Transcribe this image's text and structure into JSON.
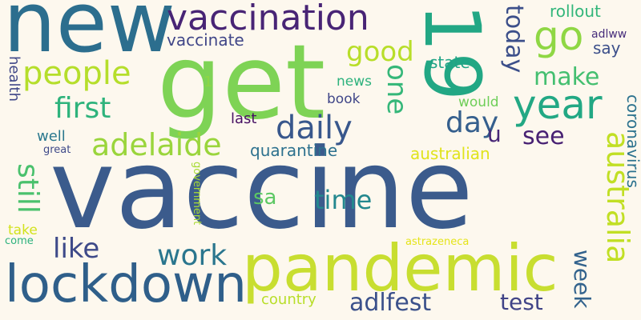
{
  "words": [
    {
      "text": "vaccine",
      "color": "#3b5b8c"
    },
    {
      "text": "get",
      "color": "#7ed355"
    },
    {
      "text": "new",
      "color": "#2c6e8e"
    },
    {
      "text": "pandemic",
      "color": "#c8de30"
    },
    {
      "text": "lockdown",
      "color": "#2f5f8a"
    },
    {
      "text": "19",
      "color": "#22a784"
    },
    {
      "text": "vaccination",
      "color": "#482475"
    },
    {
      "text": "year",
      "color": "#22a884"
    },
    {
      "text": "go",
      "color": "#8fd744"
    },
    {
      "text": "daily",
      "color": "#38578c"
    },
    {
      "text": "people",
      "color": "#b5de2b"
    },
    {
      "text": "adelaide",
      "color": "#9ad53c"
    },
    {
      "text": "australia",
      "color": "#c1df24"
    },
    {
      "text": "first",
      "color": "#2eb37c"
    },
    {
      "text": "day",
      "color": "#355f8d"
    },
    {
      "text": "still",
      "color": "#4ac16d"
    },
    {
      "text": "work",
      "color": "#2a768e"
    },
    {
      "text": "like",
      "color": "#3e4a89"
    },
    {
      "text": "time",
      "color": "#23888e"
    },
    {
      "text": "make",
      "color": "#44bf70"
    },
    {
      "text": "see",
      "color": "#482173"
    },
    {
      "text": "good",
      "color": "#b8de29"
    },
    {
      "text": "today",
      "color": "#3c4f8a"
    },
    {
      "text": "one",
      "color": "#35b779"
    },
    {
      "text": "adlfest",
      "color": "#3b518b"
    },
    {
      "text": "test",
      "color": "#404387"
    },
    {
      "text": "week",
      "color": "#33638d"
    },
    {
      "text": "u",
      "color": "#482677"
    },
    {
      "text": "sa",
      "color": "#5cc863"
    },
    {
      "text": "quarantine",
      "color": "#2d718e"
    },
    {
      "text": "australian",
      "color": "#e0e31b"
    },
    {
      "text": "vaccinate",
      "color": "#404688"
    },
    {
      "text": "rollout",
      "color": "#32b67a"
    },
    {
      "text": "state",
      "color": "#20a486"
    },
    {
      "text": "say",
      "color": "#3c4f8a"
    },
    {
      "text": "adlww",
      "color": "#472e7c"
    },
    {
      "text": "coronavirus",
      "color": "#2c728e"
    },
    {
      "text": "news",
      "color": "#2db27d"
    },
    {
      "text": "book",
      "color": "#404688"
    },
    {
      "text": "would",
      "color": "#6ece58"
    },
    {
      "text": "last",
      "color": "#471063"
    },
    {
      "text": "health",
      "color": "#3f4788"
    },
    {
      "text": "1",
      "color": "#8ed645"
    },
    {
      "text": "well",
      "color": "#2a788e"
    },
    {
      "text": "great",
      "color": "#3e4989"
    },
    {
      "text": "government",
      "color": "#a8db34"
    },
    {
      "text": "take",
      "color": "#d2e21b"
    },
    {
      "text": "come",
      "color": "#2db27d"
    },
    {
      "text": "country",
      "color": "#b8de29"
    },
    {
      "text": "astrazeneca",
      "color": "#e5e419"
    }
  ]
}
